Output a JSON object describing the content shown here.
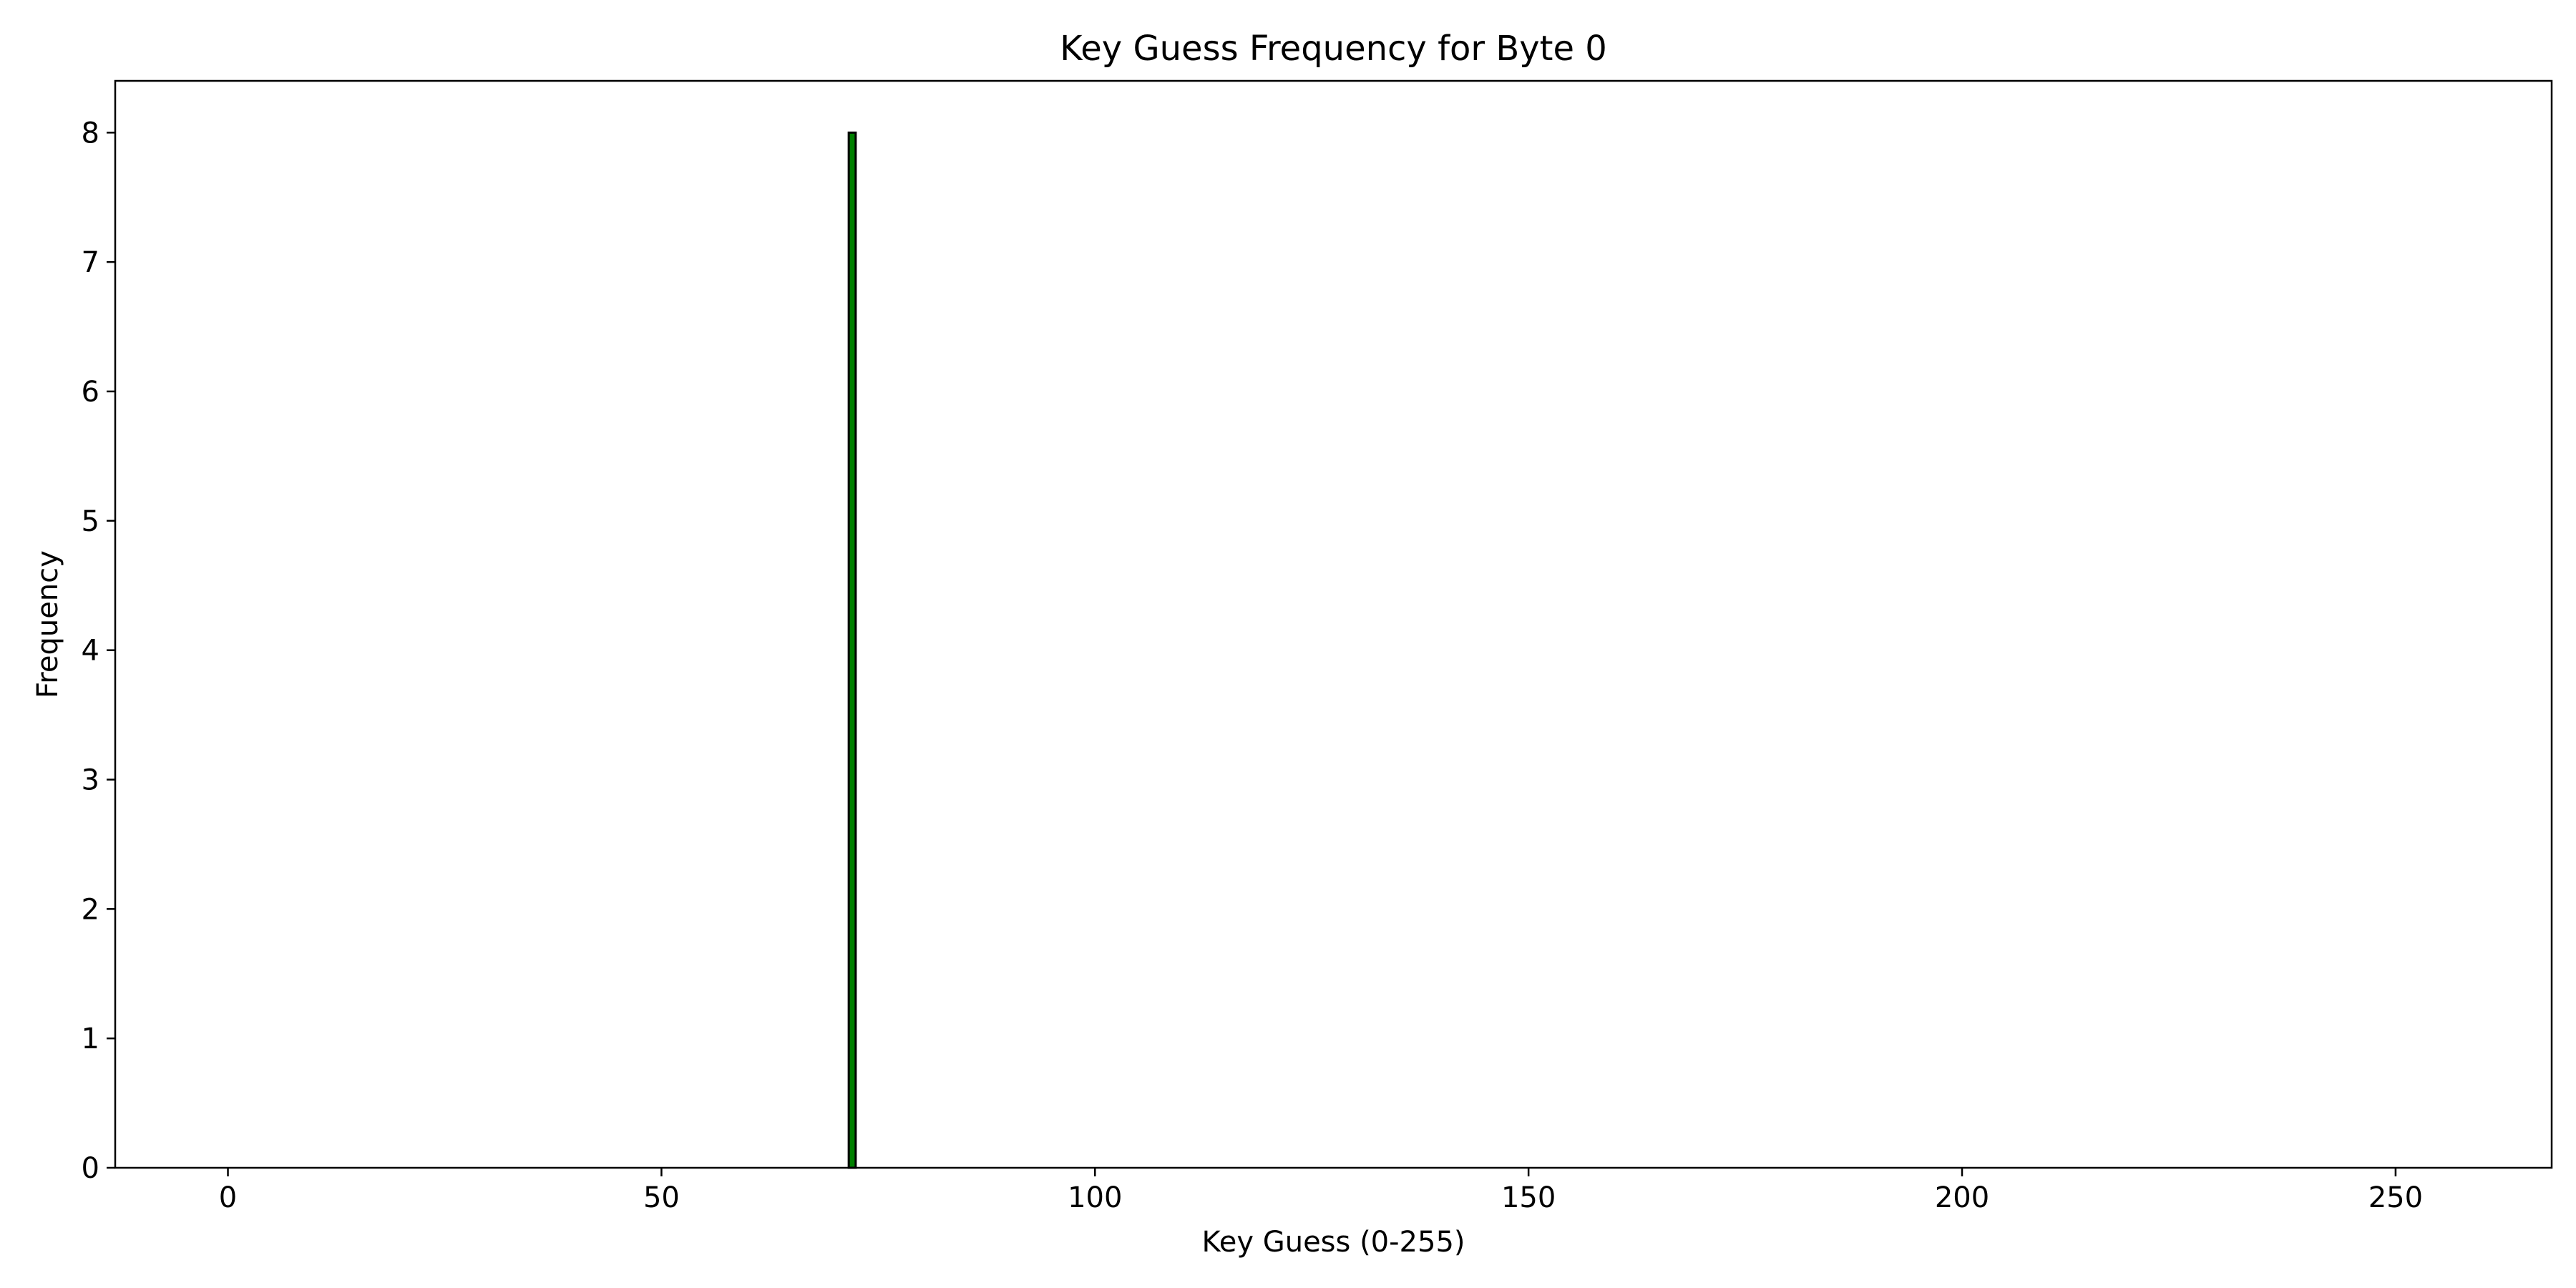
{
  "chart_data": {
    "type": "bar",
    "title": "Key Guess Frequency for Byte 0",
    "xlabel": "Key Guess (0-255)",
    "ylabel": "Frequency",
    "xlim": [
      -13,
      268
    ],
    "ylim": [
      0,
      8.4
    ],
    "xticks": [
      0,
      50,
      100,
      150,
      200,
      250
    ],
    "yticks": [
      0,
      1,
      2,
      3,
      4,
      5,
      6,
      7,
      8
    ],
    "x_range": [
      0,
      255
    ],
    "bars": [
      {
        "x": 72,
        "value": 8
      }
    ],
    "other_values": 0,
    "bar_width": 0.8,
    "bar_color": "#008000",
    "edge_color": "#000000",
    "grid": false,
    "legend": "none"
  }
}
